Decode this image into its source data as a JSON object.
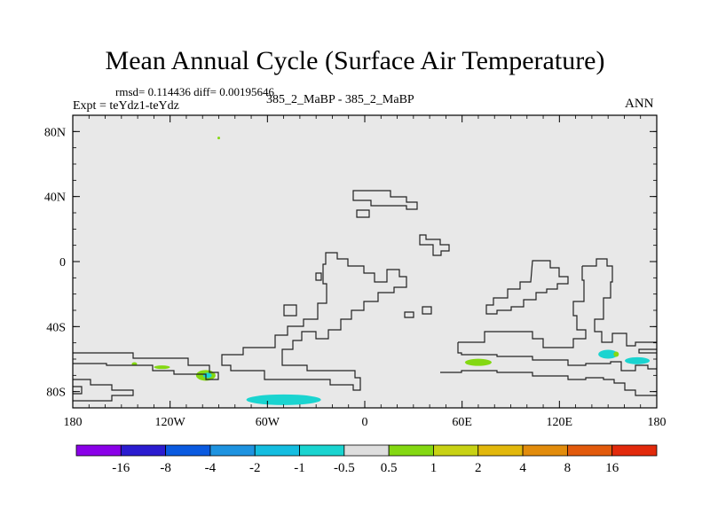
{
  "header": {
    "title": "Mean Annual Cycle (Surface Air Temperature)",
    "stats": "rmsd= 0.114436 diff= 0.00195646",
    "experiment": "Expt = teYdz1-teYdz",
    "subtitle": "385_2_MaBP - 385_2_MaBP",
    "season": "ANN"
  },
  "chart_data": {
    "type": "heatmap",
    "title": "Mean Annual Cycle (Surface Air Temperature)",
    "xlabel": "",
    "ylabel": "",
    "xlim": [
      -180,
      180
    ],
    "ylim": [
      -90,
      90
    ],
    "x_ticks": [
      {
        "value": -180,
        "label": "180"
      },
      {
        "value": -120,
        "label": "120W"
      },
      {
        "value": -60,
        "label": "60W"
      },
      {
        "value": 0,
        "label": "0"
      },
      {
        "value": 60,
        "label": "60E"
      },
      {
        "value": 120,
        "label": "120E"
      },
      {
        "value": 180,
        "label": "180"
      }
    ],
    "y_ticks": [
      {
        "value": 80,
        "label": "80N"
      },
      {
        "value": 40,
        "label": "40N"
      },
      {
        "value": 0,
        "label": "0"
      },
      {
        "value": -40,
        "label": "40S"
      },
      {
        "value": -80,
        "label": "80S"
      }
    ],
    "background_value_range": [
      -0.5,
      0.5
    ],
    "anomaly_patches": [
      {
        "name": "south-pacific-green",
        "lon": -142,
        "lat": -63,
        "value": 0.7
      },
      {
        "name": "south-pacific-green-2",
        "lon": -125,
        "lat": -65,
        "value": 0.7
      },
      {
        "name": "amundsen-green",
        "lon": -98,
        "lat": -70,
        "value": 0.8
      },
      {
        "name": "amundsen-cyan",
        "lon": -97,
        "lat": -70,
        "value": -0.7
      },
      {
        "name": "antarctic-cyan",
        "lon": -50,
        "lat": -85,
        "value": -0.7
      },
      {
        "name": "arctic-speck",
        "lon": -90,
        "lat": 76,
        "value": 0.7
      },
      {
        "name": "indian-ocean-green",
        "lon": 70,
        "lat": -62,
        "value": 0.8
      },
      {
        "name": "australia-sector-cyan",
        "lon": 150,
        "lat": -57,
        "value": -0.7
      },
      {
        "name": "south-pacific-cyan",
        "lon": 168,
        "lat": -61,
        "value": -0.7
      },
      {
        "name": "south-pacific-green-east",
        "lon": 155,
        "lat": -57,
        "value": 0.7
      }
    ],
    "colorbar": {
      "colors": [
        "#8a00e8",
        "#2b1cd0",
        "#0a5ae0",
        "#1e93e0",
        "#14bde0",
        "#1ad4d0",
        "#dedede",
        "#84d812",
        "#c8d214",
        "#e2b80c",
        "#e28c0c",
        "#e25a0c",
        "#e22a0c"
      ],
      "labels": [
        "-16",
        "-8",
        "-4",
        "-2",
        "-1",
        "-0.5",
        "0.5",
        "1",
        "2",
        "4",
        "8",
        "16"
      ]
    }
  }
}
